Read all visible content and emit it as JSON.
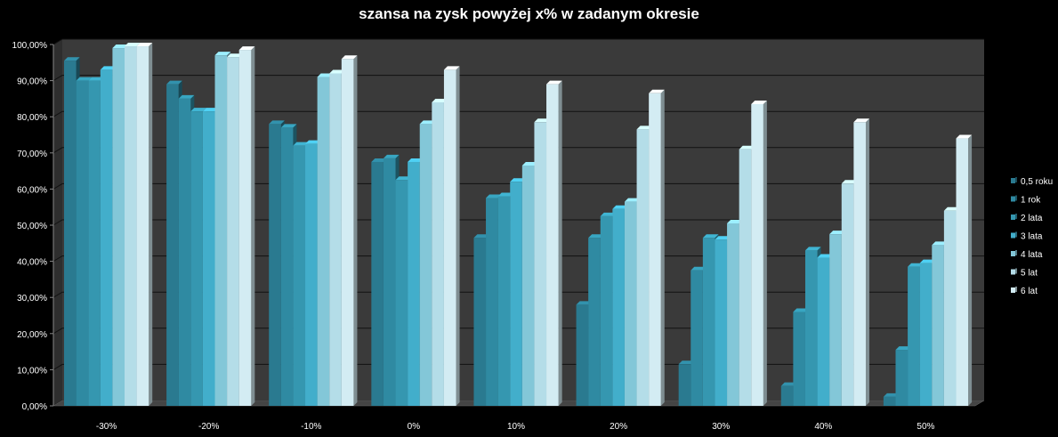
{
  "chart_data": {
    "type": "bar",
    "title": "szansa na zysk powyżej x% w zadanym okresie",
    "xlabel": "",
    "ylabel": "",
    "categories": [
      "-30%",
      "-20%",
      "-10%",
      "0%",
      "10%",
      "20%",
      "30%",
      "40%",
      "50%"
    ],
    "y_tick_labels": [
      "0,00%",
      "10,00%",
      "20,00%",
      "30,00%",
      "40,00%",
      "50,00%",
      "60,00%",
      "70,00%",
      "80,00%",
      "90,00%",
      "100,00%"
    ],
    "ylim": [
      0,
      100
    ],
    "grid": true,
    "legend_position": "right",
    "series": [
      {
        "name": "0,5 roku",
        "color": "#2a7a90",
        "values": [
          95.5,
          89,
          78,
          67.5,
          46.5,
          28,
          11.5,
          5.5,
          2.5
        ]
      },
      {
        "name": "1 rok",
        "color": "#2f8aa2",
        "values": [
          90,
          85,
          77,
          68.5,
          57.5,
          46.5,
          37.5,
          26,
          15.5
        ]
      },
      {
        "name": "2 lata",
        "color": "#3597b0",
        "values": [
          90,
          81.5,
          72,
          62.5,
          58,
          52.5,
          46.5,
          43,
          38.5
        ]
      },
      {
        "name": "3 lata",
        "color": "#42aecb",
        "values": [
          93,
          81.5,
          72.5,
          67.5,
          62,
          54.5,
          46,
          41,
          39.5
        ]
      },
      {
        "name": "4 lata",
        "color": "#83c7d8",
        "values": [
          99,
          97,
          91,
          78,
          66.5,
          56.5,
          50.5,
          47.5,
          44.5
        ]
      },
      {
        "name": "5 lat",
        "color": "#b4dde8",
        "values": [
          99.5,
          96.5,
          92,
          84,
          78.5,
          76.5,
          71,
          61.5,
          54
        ]
      },
      {
        "name": "6 lat",
        "color": "#d3ecf3",
        "values": [
          99.5,
          98.5,
          96,
          93,
          89,
          86.5,
          83.5,
          78.5,
          74
        ]
      }
    ]
  }
}
